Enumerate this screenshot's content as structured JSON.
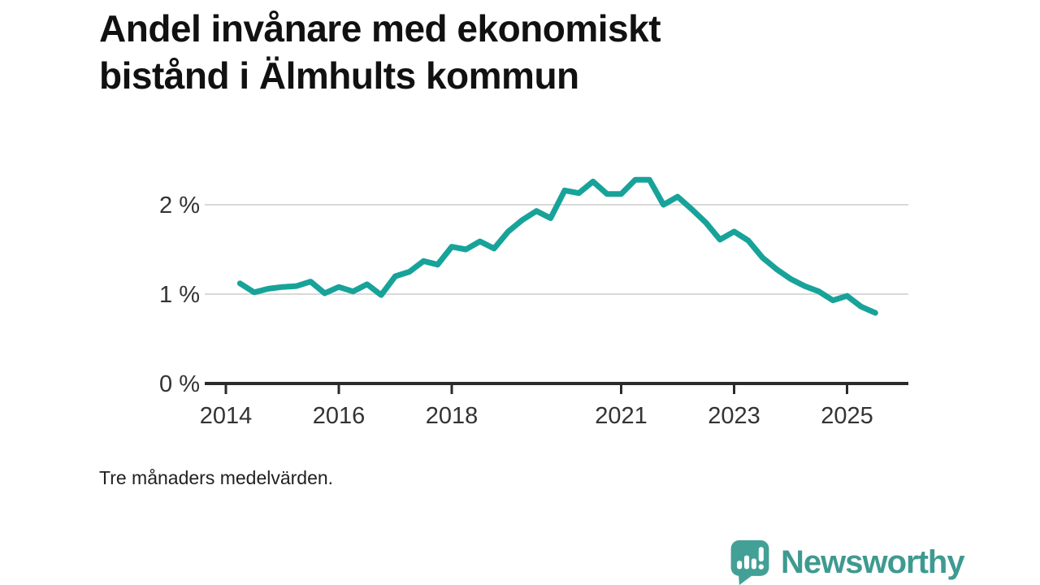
{
  "title": {
    "lines": [
      "Andel invånare med ekonomiskt",
      "bistånd i Älmhults kommun"
    ]
  },
  "footnote": "Tre månaders medelvärden.",
  "branding": {
    "name": "Newsworthy",
    "icon": "bar-chart-speech-bubble-icon",
    "color": "#3E9A90"
  },
  "chart_data": {
    "type": "line",
    "title": "Andel invånare med ekonomiskt bistånd i Älmhults kommun",
    "note": "Tre månaders medelvärden.",
    "xlabel": "",
    "ylabel": "",
    "x_start": 2014.25,
    "x_step": 0.25,
    "values": [
      1.12,
      1.02,
      1.06,
      1.08,
      1.09,
      1.14,
      1.01,
      1.08,
      1.03,
      1.11,
      0.99,
      1.2,
      1.25,
      1.37,
      1.33,
      1.53,
      1.5,
      1.59,
      1.51,
      1.7,
      1.83,
      1.93,
      1.85,
      2.16,
      2.13,
      2.26,
      2.12,
      2.12,
      2.28,
      2.28,
      2.0,
      2.09,
      1.95,
      1.8,
      1.61,
      1.7,
      1.6,
      1.41,
      1.28,
      1.17,
      1.09,
      1.03,
      0.93,
      0.98,
      0.86,
      0.79
    ],
    "x_ticks": [
      2014,
      2016,
      2018,
      2021,
      2023,
      2025
    ],
    "y_ticks": [
      {
        "value": 0,
        "label": "0 %"
      },
      {
        "value": 1,
        "label": "1 %"
      },
      {
        "value": 2,
        "label": "2 %"
      }
    ],
    "xlim": [
      2014,
      2025.6
    ],
    "ylim": [
      0,
      2.4
    ],
    "grid": "horizontal",
    "legend": "none",
    "line_color": "#17A399",
    "grid_color": "#D9D9D9",
    "axis_color": "#2B2B2B",
    "tick_text_color": "#333333"
  }
}
